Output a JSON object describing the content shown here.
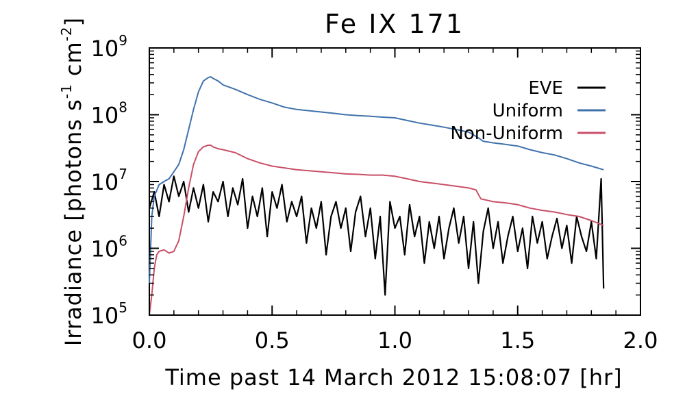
{
  "chart_data": {
    "type": "line",
    "title": "Fe IX 171",
    "xlabel": "Time past 14 March 2012 15:08:07 [hr]",
    "ylabel_main": "Irradiance [photons s",
    "ylabel_sup1": "-1",
    "ylabel_mid": " cm",
    "ylabel_sup2": "-2",
    "ylabel_end": "]",
    "xlim": [
      0.0,
      2.0
    ],
    "ylim": [
      100000,
      1000000000
    ],
    "yscale": "log",
    "xticks": [
      "0.0",
      "0.5",
      "1.0",
      "1.5",
      "2.0"
    ],
    "yticks": [
      {
        "base": "10",
        "exp": "5",
        "value": 100000
      },
      {
        "base": "10",
        "exp": "6",
        "value": 1000000
      },
      {
        "base": "10",
        "exp": "7",
        "value": 10000000
      },
      {
        "base": "10",
        "exp": "8",
        "value": 100000000
      },
      {
        "base": "10",
        "exp": "9",
        "value": 1000000000
      }
    ],
    "grid": false,
    "legend_position": "top-right",
    "series": [
      {
        "name": "EVE",
        "color": "#000000",
        "x": [
          0.0,
          0.02,
          0.04,
          0.06,
          0.08,
          0.1,
          0.12,
          0.14,
          0.16,
          0.18,
          0.2,
          0.22,
          0.24,
          0.26,
          0.28,
          0.3,
          0.32,
          0.34,
          0.36,
          0.38,
          0.4,
          0.42,
          0.44,
          0.46,
          0.48,
          0.5,
          0.52,
          0.54,
          0.56,
          0.58,
          0.6,
          0.62,
          0.64,
          0.66,
          0.68,
          0.7,
          0.72,
          0.74,
          0.76,
          0.78,
          0.8,
          0.82,
          0.84,
          0.86,
          0.88,
          0.9,
          0.92,
          0.94,
          0.96,
          0.98,
          1.0,
          1.02,
          1.04,
          1.06,
          1.08,
          1.1,
          1.12,
          1.14,
          1.16,
          1.18,
          1.2,
          1.22,
          1.24,
          1.26,
          1.28,
          1.3,
          1.32,
          1.34,
          1.36,
          1.38,
          1.4,
          1.42,
          1.44,
          1.46,
          1.48,
          1.5,
          1.52,
          1.54,
          1.56,
          1.58,
          1.6,
          1.62,
          1.64,
          1.66,
          1.68,
          1.7,
          1.72,
          1.74,
          1.76,
          1.78,
          1.8,
          1.82,
          1.84,
          1.85
        ],
        "y": [
          4000000,
          7000000,
          3000000,
          9000000,
          5000000,
          12000000,
          6000000,
          10000000,
          3500000,
          8000000,
          4000000,
          9000000,
          2500000,
          7000000,
          5000000,
          10000000,
          3000000,
          8000000,
          4500000,
          11000000,
          2000000,
          6000000,
          3000000,
          8000000,
          1500000,
          7000000,
          4000000,
          9000000,
          2500000,
          5000000,
          3000000,
          6000000,
          1200000,
          4000000,
          2000000,
          5000000,
          800000,
          3000000,
          5000000,
          2000000,
          4000000,
          900000,
          3500000,
          6000000,
          1500000,
          4000000,
          700000,
          3000000,
          200000,
          5000000,
          2000000,
          3000000,
          800000,
          4500000,
          1500000,
          3000000,
          600000,
          2500000,
          1000000,
          3000000,
          700000,
          2000000,
          4000000,
          1200000,
          3000000,
          500000,
          2500000,
          300000,
          1800000,
          4000000,
          1000000,
          2500000,
          600000,
          1500000,
          3000000,
          900000,
          2000000,
          500000,
          3000000,
          1200000,
          2500000,
          700000,
          1500000,
          2800000,
          1000000,
          2200000,
          600000,
          3000000,
          1500000,
          900000,
          2500000,
          700000,
          11000000,
          250000
        ]
      },
      {
        "name": "Uniform",
        "color": "#3f72ab",
        "x": [
          0.0,
          0.01,
          0.02,
          0.04,
          0.06,
          0.08,
          0.1,
          0.12,
          0.14,
          0.16,
          0.18,
          0.2,
          0.22,
          0.24,
          0.25,
          0.26,
          0.28,
          0.3,
          0.35,
          0.4,
          0.45,
          0.5,
          0.55,
          0.6,
          0.65,
          0.7,
          0.75,
          0.8,
          0.85,
          0.9,
          0.95,
          1.0,
          1.05,
          1.1,
          1.15,
          1.2,
          1.25,
          1.3,
          1.32,
          1.34,
          1.36,
          1.4,
          1.45,
          1.5,
          1.55,
          1.6,
          1.65,
          1.7,
          1.75,
          1.8,
          1.85
        ],
        "y": [
          300000,
          3000000,
          6000000,
          9000000,
          10000000,
          11000000,
          14000000,
          18000000,
          30000000,
          60000000,
          120000000,
          220000000,
          320000000,
          360000000,
          370000000,
          350000000,
          320000000,
          280000000,
          240000000,
          200000000,
          170000000,
          150000000,
          130000000,
          120000000,
          115000000,
          110000000,
          105000000,
          100000000,
          97000000,
          95000000,
          92000000,
          90000000,
          82000000,
          75000000,
          70000000,
          65000000,
          60000000,
          55000000,
          50000000,
          45000000,
          40000000,
          38000000,
          36000000,
          34000000,
          30000000,
          27000000,
          25000000,
          22000000,
          19000000,
          17000000,
          15000000
        ]
      },
      {
        "name": "Non-Uniform",
        "color": "#c94f68",
        "x": [
          0.0,
          0.01,
          0.02,
          0.03,
          0.04,
          0.06,
          0.08,
          0.1,
          0.12,
          0.14,
          0.16,
          0.18,
          0.2,
          0.22,
          0.24,
          0.25,
          0.26,
          0.28,
          0.3,
          0.35,
          0.4,
          0.45,
          0.5,
          0.55,
          0.6,
          0.65,
          0.7,
          0.75,
          0.8,
          0.85,
          0.9,
          0.95,
          1.0,
          1.05,
          1.1,
          1.15,
          1.2,
          1.25,
          1.3,
          1.33,
          1.35,
          1.4,
          1.45,
          1.5,
          1.55,
          1.6,
          1.65,
          1.7,
          1.75,
          1.8,
          1.85
        ],
        "y": [
          100000,
          200000,
          500000,
          800000,
          900000,
          950000,
          850000,
          900000,
          1300000,
          3000000,
          8000000,
          18000000,
          28000000,
          33000000,
          35000000,
          35000000,
          33000000,
          31000000,
          30000000,
          27000000,
          22000000,
          19000000,
          17000000,
          16000000,
          15000000,
          14500000,
          14000000,
          13500000,
          13000000,
          12800000,
          12500000,
          12500000,
          12000000,
          11000000,
          10000000,
          9500000,
          9000000,
          8500000,
          8000000,
          7500000,
          5500000,
          5000000,
          4800000,
          4500000,
          4000000,
          3700000,
          3500000,
          3200000,
          3000000,
          2600000,
          2200000
        ]
      }
    ]
  }
}
